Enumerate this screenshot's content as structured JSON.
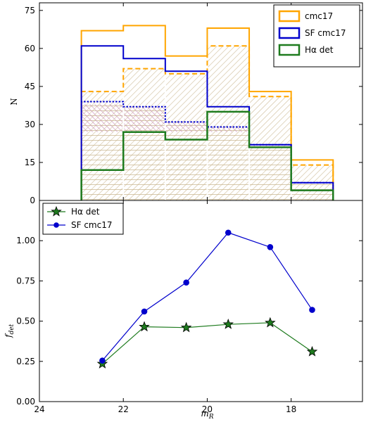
{
  "colors": {
    "cmc17": "#FFA500",
    "sf": "#0000CC",
    "ha": "#1E7B1E",
    "hatch_pink": "#C98AB8",
    "hatch_tan": "#C8B48C",
    "text": "#000000"
  },
  "chart_data": [
    {
      "type": "bar",
      "panel": "top",
      "ylabel": "N",
      "ylim": [
        0,
        78
      ],
      "xlim": [
        24,
        16.3
      ],
      "yticks": [
        0,
        15,
        30,
        45,
        60,
        75
      ],
      "bin_edges": [
        23,
        22,
        21,
        20,
        19,
        18,
        17
      ],
      "series": [
        {
          "name": "cmc17",
          "style": "solid",
          "values": [
            67,
            69,
            57,
            68,
            43,
            16
          ]
        },
        {
          "name": "SF cmc17",
          "style": "solid",
          "values": [
            61,
            56,
            51,
            37,
            22,
            7
          ]
        },
        {
          "name": "Hα det",
          "style": "solid",
          "values": [
            12,
            27,
            24,
            35,
            21,
            4
          ]
        },
        {
          "style": "dashed",
          "values": [
            43,
            52,
            50,
            61,
            41,
            14
          ]
        },
        {
          "style": "dotted",
          "values": [
            39,
            37,
            31,
            29,
            22,
            7
          ]
        }
      ],
      "legend_labels": [
        "cmc17",
        "SF cmc17",
        "Hα det"
      ],
      "legend_position": "top-right"
    },
    {
      "type": "line",
      "panel": "bottom",
      "xlabel": "m_R",
      "ylabel": "f_det",
      "xlim": [
        24,
        16.3
      ],
      "ylim": [
        0,
        1.25
      ],
      "xticks": [
        24,
        22,
        20,
        18
      ],
      "yticks": [
        "0.00",
        "0.25",
        "0.50",
        "0.75",
        "1.00"
      ],
      "x": [
        22.5,
        21.5,
        20.5,
        19.5,
        18.5,
        17.5
      ],
      "series": [
        {
          "name": "Hα det",
          "marker": "star",
          "values": [
            0.235,
            0.465,
            0.46,
            0.48,
            0.49,
            0.31
          ]
        },
        {
          "name": "SF cmc17",
          "marker": "circle",
          "values": [
            0.255,
            0.56,
            0.74,
            1.05,
            0.96,
            0.57
          ]
        }
      ],
      "legend_labels": [
        "Hα det",
        "SF cmc17"
      ],
      "legend_position": "top-left"
    }
  ],
  "labels": {
    "top_ylabel": "N",
    "bottom_ylabel_main": "f",
    "bottom_ylabel_sub": "det",
    "xlabel_main": "m",
    "xlabel_sub": "R"
  }
}
